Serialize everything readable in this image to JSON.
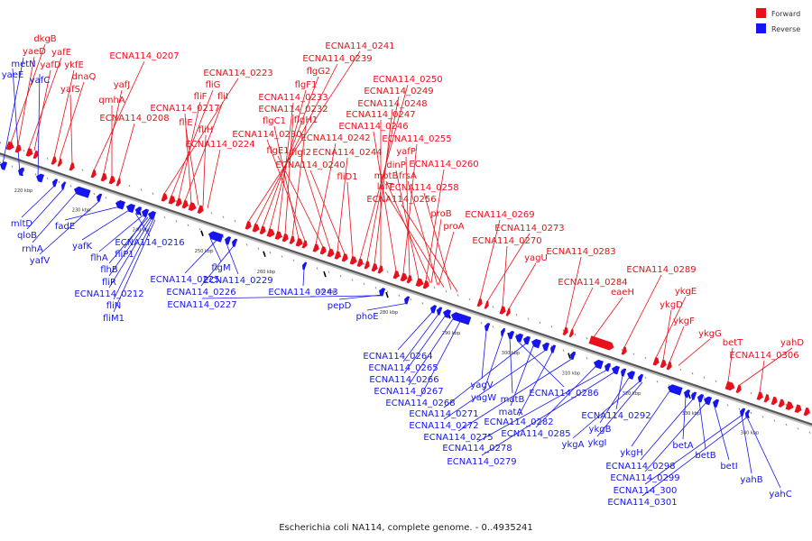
{
  "caption": "Escherichia coli NA114, complete genome. - 0..4935241",
  "legend": [
    {
      "label": "Forward",
      "color": "#e8101a"
    },
    {
      "label": "Reverse",
      "color": "#1515f0"
    }
  ],
  "kbp_ticks": [
    "220 kbp",
    "230 kbp",
    "240 kbp",
    "250 kbp",
    "260 kbp",
    "270 kbp",
    "280 kbp",
    "290 kbp",
    "300 kbp",
    "310 kbp",
    "320 kbp",
    "330 kbp",
    "340 kbp"
  ],
  "forward_labels": [
    "dkgB",
    "yaeD",
    "yafE",
    "yafD",
    "ykfE",
    "dnaQ",
    "yafS",
    "ECNA114_0207",
    "yafJ",
    "qmhA",
    "ECNA114_0208",
    "ECNA114_0223",
    "fliG",
    "fliF",
    "fliI",
    "ECNA114_0217",
    "fliE",
    "fliH",
    "ECNA114_0224",
    "ECNA114_0241",
    "ECNA114_0239",
    "flgG2",
    "flgF1",
    "ECNA114_0233",
    "ECNA114_0232",
    "flgH1",
    "flgC1",
    "ECNA114_0230",
    "ECNA114_0242",
    "flgE1",
    "flgI2",
    "ECNA114_0244",
    "ECNA114_0240",
    "fliD1",
    "ECNA114_0250",
    "ECNA114_0249",
    "ECNA114_0248",
    "ECNA114_0247",
    "ECNA114_0246",
    "ECNA114_0255",
    "yafP",
    "dinP",
    "ECNA114_0260",
    "motB",
    "frsA",
    "lafT",
    "ECNA114_0258",
    "ECNA114_0256",
    "proB",
    "proA",
    "ECNA114_0269",
    "ECNA114_0273",
    "ECNA114_0270",
    "yagU",
    "ECNA114_0283",
    "ECNA114_0284",
    "eaeH",
    "ECNA114_0289",
    "ykgE",
    "ykgD",
    "ykgF",
    "ykgG",
    "betT",
    "yahD",
    "ECNA114_0306"
  ],
  "reverse_labels": [
    "metN",
    "yaeE",
    "yafC",
    "mltD",
    "qloB",
    "rnhA",
    "yafV",
    "fadE",
    "yafK",
    "ECNA114_0216",
    "flhA",
    "fliP1",
    "flhB",
    "fliR",
    "ECNA114_0212",
    "fliN",
    "fliM1",
    "flgM",
    "ECNA114_0225",
    "ECNA114_0229",
    "ECNA114_0226",
    "ECNA114_0243",
    "ECNA114_0227",
    "pepD",
    "phoE",
    "ECNA114_0264",
    "ECNA114_0265",
    "ECNA114_0266",
    "ECNA114_0267",
    "yagV",
    "ECNA114_0268",
    "yagW",
    "matB",
    "ECNA114_0286",
    "ECNA114_0271",
    "matA",
    "ECNA114_0272",
    "ECNA114_0282",
    "ECNA114_0275",
    "ECNA114_0285",
    "ECNA114_0278",
    "ECNA114_0279",
    "ECNA114_0292",
    "ykgB",
    "ykgA",
    "ykgI",
    "ykgH",
    "betA",
    "ECNA114_0298",
    "betB",
    "ECNA114_0299",
    "betI",
    "ECNA114_300",
    "ECNA114_0301",
    "yahB",
    "yahC"
  ]
}
